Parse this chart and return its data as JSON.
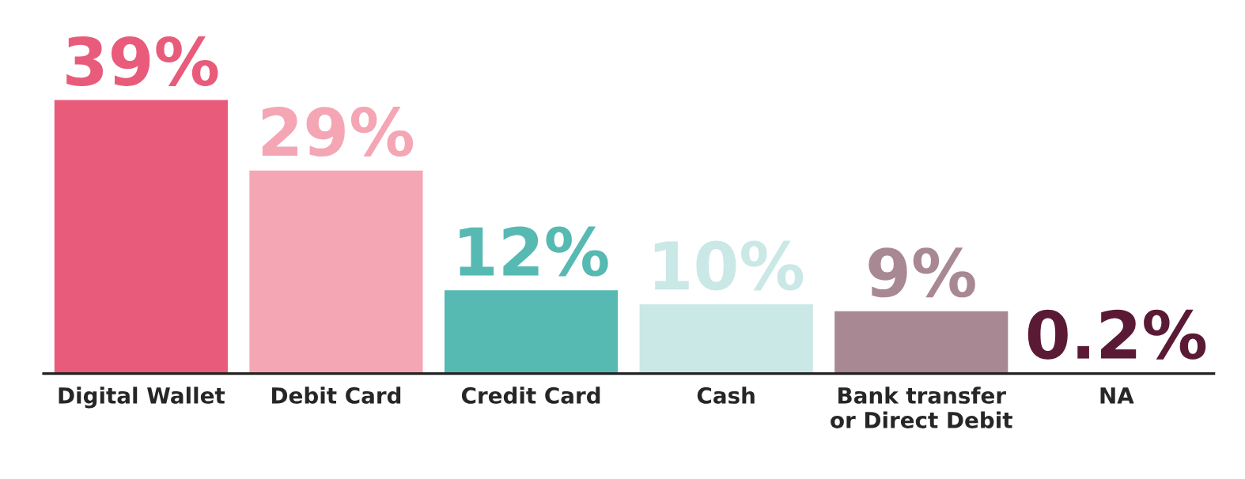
{
  "chart_data": {
    "type": "bar",
    "categories": [
      "Digital Wallet",
      "Debit Card",
      "Credit Card",
      "Cash",
      "Bank transfer\nor Direct Debit",
      "NA"
    ],
    "values": [
      39,
      29,
      12,
      10,
      9,
      0.2
    ],
    "colors": [
      "#e95b7a",
      "#f4a6b5",
      "#56b9b2",
      "#c9e8e6",
      "#a88892",
      "#5a1a35"
    ],
    "value_labels": [
      "39%",
      "29%",
      "12%",
      "10%",
      "9%",
      "0.2%"
    ],
    "grid": false,
    "legend": false
  }
}
